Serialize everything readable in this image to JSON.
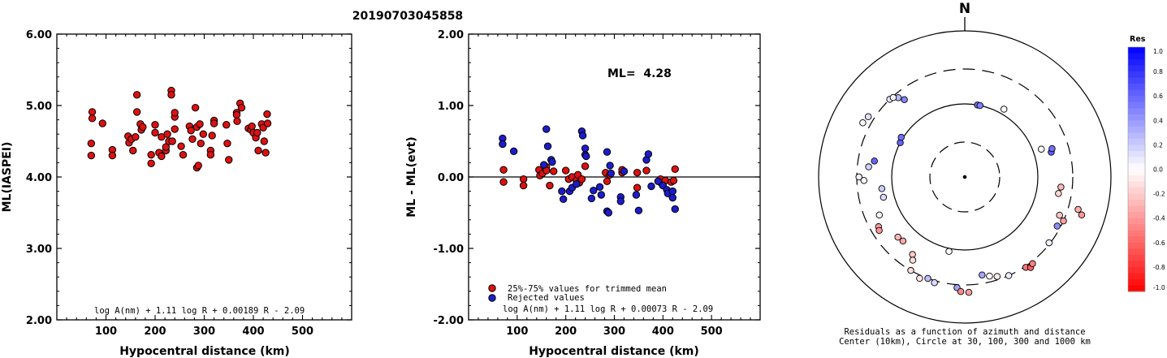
{
  "title": "20190703045858",
  "charts": [
    {
      "type": "scatter",
      "xlabel": "Hypocentral distance (km)",
      "ylabel": "ML(IASPEI)",
      "xlim": [
        0,
        600
      ],
      "ylim": [
        2.0,
        6.0
      ],
      "x_ticks": [
        "100",
        "200",
        "300",
        "400",
        "500"
      ],
      "y_ticks": [
        "2.00",
        "3.00",
        "4.00",
        "5.00",
        "6.00"
      ],
      "formula": "log A(nm) + 1.11 log R + 0.00189 R - 2.09",
      "series": [
        {
          "color": "#dd1111",
          "points": [
            [
              72,
              4.91
            ],
            [
              72,
              4.82
            ],
            [
              70,
              4.47
            ],
            [
              70,
              4.3
            ],
            [
              93,
              4.75
            ],
            [
              113,
              4.38
            ],
            [
              113,
              4.3
            ],
            [
              145,
              4.57
            ],
            [
              147,
              4.48
            ],
            [
              152,
              4.53
            ],
            [
              155,
              4.37
            ],
            [
              160,
              4.56
            ],
            [
              163,
              5.15
            ],
            [
              163,
              4.91
            ],
            [
              170,
              4.74
            ],
            [
              172,
              4.66
            ],
            [
              175,
              4.7
            ],
            [
              192,
              4.31
            ],
            [
              192,
              4.19
            ],
            [
              200,
              4.73
            ],
            [
              200,
              4.62
            ],
            [
              208,
              4.34
            ],
            [
              213,
              4.56
            ],
            [
              213,
              4.29
            ],
            [
              222,
              4.37
            ],
            [
              222,
              4.42
            ],
            [
              225,
              4.6
            ],
            [
              228,
              4.5
            ],
            [
              233,
              5.21
            ],
            [
              233,
              5.15
            ],
            [
              235,
              4.5
            ],
            [
              240,
              4.84
            ],
            [
              240,
              4.9
            ],
            [
              240,
              4.67
            ],
            [
              253,
              4.43
            ],
            [
              257,
              4.31
            ],
            [
              270,
              4.71
            ],
            [
              273,
              4.65
            ],
            [
              276,
              4.53
            ],
            [
              282,
              4.97
            ],
            [
              285,
              4.7
            ],
            [
              285,
              4.13
            ],
            [
              288,
              4.16
            ],
            [
              291,
              4.74
            ],
            [
              293,
              4.47
            ],
            [
              298,
              4.6
            ],
            [
              313,
              4.37
            ],
            [
              313,
              4.31
            ],
            [
              316,
              4.58
            ],
            [
              320,
              4.79
            ],
            [
              320,
              4.75
            ],
            [
              345,
              4.73
            ],
            [
              347,
              4.47
            ],
            [
              350,
              4.24
            ],
            [
              366,
              4.9
            ],
            [
              366,
              4.87
            ],
            [
              367,
              4.78
            ],
            [
              373,
              5.03
            ],
            [
              376,
              4.97
            ],
            [
              390,
              4.68
            ],
            [
              395,
              4.66
            ],
            [
              397,
              4.71
            ],
            [
              400,
              4.62
            ],
            [
              405,
              4.55
            ],
            [
              408,
              4.62
            ],
            [
              410,
              4.37
            ],
            [
              417,
              4.74
            ],
            [
              420,
              4.69
            ],
            [
              422,
              4.5
            ],
            [
              425,
              4.34
            ],
            [
              428,
              4.88
            ],
            [
              429,
              4.75
            ]
          ]
        }
      ]
    },
    {
      "type": "scatter",
      "xlabel": "Hypocentral distance (km)",
      "ylabel": "ML - ML(evt)",
      "xlim": [
        0,
        600
      ],
      "ylim": [
        -2.0,
        2.0
      ],
      "x_ticks": [
        "100",
        "200",
        "300",
        "400",
        "500"
      ],
      "y_ticks": [
        "-2.00",
        "-1.00",
        "0.00",
        "1.00",
        "2.00"
      ],
      "reference_line": 0.0,
      "annotation": "ML=  4.28",
      "formula": "log A(nm) + 1.11 log R + 0.00073 R - 2.09",
      "legend": {
        "placement": "bottom-left",
        "entries": [
          "25%-75% values for trimmed mean",
          "Rejected values"
        ]
      },
      "series": [
        {
          "color": "#dd1111",
          "points": [
            [
              72,
              0.1
            ],
            [
              72,
              -0.07
            ],
            [
              113,
              -0.03
            ],
            [
              113,
              -0.12
            ],
            [
              145,
              0.1
            ],
            [
              147,
              0.02
            ],
            [
              152,
              0.05
            ],
            [
              160,
              0.14
            ],
            [
              160,
              0.09
            ],
            [
              167,
              -0.12
            ],
            [
              175,
              0.08
            ],
            [
              200,
              0.09
            ],
            [
              206,
              -0.03
            ],
            [
              213,
              0.0
            ],
            [
              222,
              -0.05
            ],
            [
              225,
              0.03
            ],
            [
              228,
              -0.08
            ],
            [
              233,
              -0.03
            ],
            [
              240,
              0.15
            ],
            [
              282,
              0.06
            ],
            [
              285,
              -0.06
            ],
            [
              291,
              0.03
            ],
            [
              316,
              0.06
            ],
            [
              316,
              0.1
            ],
            [
              347,
              0.06
            ],
            [
              347,
              -0.15
            ],
            [
              366,
              0.09
            ],
            [
              395,
              -0.03
            ],
            [
              397,
              -0.09
            ],
            [
              405,
              -0.05
            ],
            [
              417,
              -0.07
            ],
            [
              422,
              -0.05
            ],
            [
              425,
              0.11
            ]
          ]
        },
        {
          "color": "#1c1ccc",
          "points": [
            [
              70,
              0.54
            ],
            [
              70,
              0.46
            ],
            [
              93,
              0.36
            ],
            [
              155,
              0.17
            ],
            [
              160,
              0.67
            ],
            [
              163,
              0.43
            ],
            [
              170,
              0.24
            ],
            [
              172,
              0.21
            ],
            [
              192,
              -0.2
            ],
            [
              195,
              -0.31
            ],
            [
              208,
              -0.2
            ],
            [
              213,
              -0.15
            ],
            [
              222,
              -0.1
            ],
            [
              233,
              0.64
            ],
            [
              235,
              0.58
            ],
            [
              240,
              0.4
            ],
            [
              240,
              0.31
            ],
            [
              242,
              0.29
            ],
            [
              253,
              -0.3
            ],
            [
              257,
              -0.19
            ],
            [
              270,
              -0.14
            ],
            [
              273,
              -0.25
            ],
            [
              285,
              -0.48
            ],
            [
              288,
              -0.5
            ],
            [
              285,
              0.35
            ],
            [
              291,
              0.16
            ],
            [
              293,
              0.05
            ],
            [
              313,
              -0.28
            ],
            [
              313,
              -0.34
            ],
            [
              320,
              0.08
            ],
            [
              345,
              -0.25
            ],
            [
              350,
              -0.47
            ],
            [
              366,
              0.24
            ],
            [
              370,
              0.32
            ],
            [
              376,
              -0.13
            ],
            [
              390,
              -0.06
            ],
            [
              400,
              -0.12
            ],
            [
              408,
              -0.18
            ],
            [
              410,
              -0.23
            ],
            [
              420,
              -0.2
            ],
            [
              420,
              -0.29
            ],
            [
              425,
              -0.45
            ]
          ]
        }
      ]
    },
    {
      "type": "polar",
      "north_label": "N",
      "caption_line1": "Residuals as a function of azimuth and distance",
      "caption_line2": "Center (10km), Circle at 30, 100, 300 and 1000 km",
      "rings_km": [
        30,
        100,
        300,
        1000
      ],
      "colorbar": {
        "title": "Res",
        "labels": [
          "1.0",
          "0.8",
          "0.6",
          "0.4",
          "0.2",
          "0.0",
          "-0.2",
          "-0.4",
          "-0.6",
          "-0.8",
          "-1.0"
        ],
        "max_color": "#0000ff",
        "zero_color": "#ffffff",
        "min_color": "#ff0000"
      },
      "stations": [
        {
          "az": 10,
          "dist": 100,
          "res": 0.55
        },
        {
          "az": 12,
          "dist": 100,
          "res": 0.5
        },
        {
          "az": 30,
          "dist": 118,
          "res": 0.02
        },
        {
          "az": 298,
          "dist": 100,
          "res": 0.62
        },
        {
          "az": 302,
          "dist": 106,
          "res": 0.56
        },
        {
          "az": 322,
          "dist": 220,
          "res": 0.48
        },
        {
          "az": 320,
          "dist": 260,
          "res": 0.28
        },
        {
          "az": 316,
          "dist": 300,
          "res": 0.1
        },
        {
          "az": 318,
          "dist": 290,
          "res": 0.04
        },
        {
          "az": 302,
          "dist": 360,
          "res": 0.12
        },
        {
          "az": 298,
          "dist": 380,
          "res": 0.02
        },
        {
          "az": 280,
          "dist": 180,
          "res": 0.6
        },
        {
          "az": 276,
          "dist": 210,
          "res": 0.18
        },
        {
          "az": 270,
          "dist": 280,
          "res": 0.06
        },
        {
          "az": 268,
          "dist": 240,
          "res": 0.02
        },
        {
          "az": 262,
          "dist": 140,
          "res": 0.2
        },
        {
          "az": 256,
          "dist": 140,
          "res": 0.15
        },
        {
          "az": 246,
          "dist": 190,
          "res": 0.04
        },
        {
          "az": 240,
          "dist": 230,
          "res": -0.36
        },
        {
          "az": 238,
          "dist": 240,
          "res": -0.42
        },
        {
          "az": 228,
          "dist": 170,
          "res": -0.28
        },
        {
          "az": 224,
          "dist": 165,
          "res": -0.34
        },
        {
          "az": 214,
          "dist": 190,
          "res": -0.22
        },
        {
          "az": 212,
          "dist": 220,
          "res": -0.15
        },
        {
          "az": 210,
          "dist": 300,
          "res": -0.14
        },
        {
          "az": 204,
          "dist": 330,
          "res": -0.1
        },
        {
          "az": 200,
          "dist": 300,
          "res": 0.26
        },
        {
          "az": 196,
          "dist": 320,
          "res": 0.14
        },
        {
          "az": 192,
          "dist": 110,
          "res": 0.0
        },
        {
          "az": 184,
          "dist": 330,
          "res": 0.36
        },
        {
          "az": 182,
          "dist": 370,
          "res": -0.46
        },
        {
          "az": 178,
          "dist": 380,
          "res": -0.38
        },
        {
          "az": 170,
          "dist": 230,
          "res": 0.35
        },
        {
          "az": 166,
          "dist": 250,
          "res": -0.02
        },
        {
          "az": 162,
          "dist": 270,
          "res": -0.08
        },
        {
          "az": 156,
          "dist": 300,
          "res": 0.07
        },
        {
          "az": 146,
          "dist": 310,
          "res": -0.55
        },
        {
          "az": 144,
          "dist": 340,
          "res": -0.62
        },
        {
          "az": 142,
          "dist": 320,
          "res": -0.5
        },
        {
          "az": 128,
          "dist": 290,
          "res": 0.04
        },
        {
          "az": 118,
          "dist": 270,
          "res": 0.45
        },
        {
          "az": 114,
          "dist": 300,
          "res": -0.38
        },
        {
          "az": 112,
          "dist": 250,
          "res": -0.22
        },
        {
          "az": 108,
          "dist": 480,
          "res": -0.4
        },
        {
          "az": 106,
          "dist": 410,
          "res": -0.32
        },
        {
          "az": 100,
          "dist": 200,
          "res": -0.16
        },
        {
          "az": 96,
          "dist": 210,
          "res": -0.28
        },
        {
          "az": 74,
          "dist": 170,
          "res": 0.62
        },
        {
          "az": 72,
          "dist": 180,
          "res": 0.56
        },
        {
          "az": 70,
          "dist": 130,
          "res": 0.02
        }
      ]
    }
  ]
}
